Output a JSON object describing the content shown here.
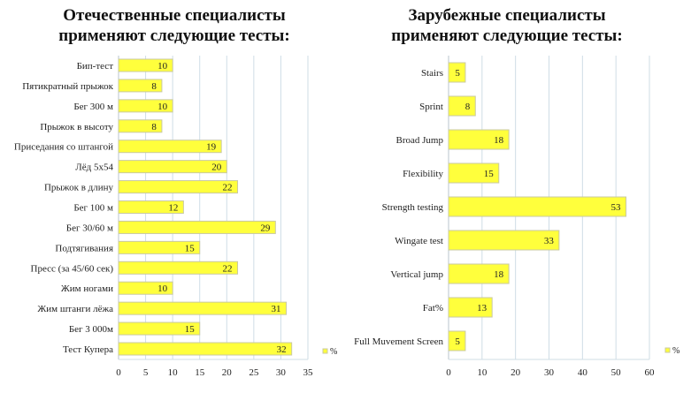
{
  "chart_data": [
    {
      "type": "bar",
      "orientation": "horizontal",
      "title": [
        "Отечественные специалисты",
        "применяют следующие тесты:"
      ],
      "categories": [
        "Бип-тест",
        "Пятикратный прыжок",
        "Бег 300 м",
        "Прыжок в высоту",
        "Приседания со штангой",
        "Лёд 5х54",
        "Прыжок в длину",
        "Бег 100 м",
        "Бег 30/60 м",
        "Подтягивания",
        "Пресс (за 45/60 сек)",
        "Жим ногами",
        "Жим штанги лёжа",
        "Бег 3 000м",
        "Тест Купера"
      ],
      "values": [
        10,
        8,
        10,
        8,
        19,
        20,
        22,
        12,
        29,
        15,
        22,
        10,
        31,
        15,
        32
      ],
      "xlim": [
        0,
        35
      ],
      "ticks": [
        "0",
        "5",
        "10",
        "15",
        "20",
        "25",
        "30",
        "35"
      ],
      "legend": "%",
      "legend_position": "bottom-right",
      "grid": true,
      "bar_color": "#ffff3c"
    },
    {
      "type": "bar",
      "orientation": "horizontal",
      "title": [
        "Зарубежные специалисты",
        "применяют следующие тесты:"
      ],
      "categories": [
        "Stairs",
        "Sprint",
        "Broad Jump",
        "Flexibility",
        "Strength testing",
        "Wingate test",
        "Vertical jump",
        "Fat%",
        "Full Muvement Screen"
      ],
      "values": [
        5,
        8,
        18,
        15,
        53,
        33,
        18,
        13,
        5
      ],
      "xlim": [
        0,
        60
      ],
      "ticks": [
        "0",
        "10",
        "20",
        "30",
        "40",
        "50",
        "60"
      ],
      "legend": "%",
      "legend_position": "bottom-right",
      "grid": true,
      "bar_color": "#ffff3c"
    }
  ]
}
